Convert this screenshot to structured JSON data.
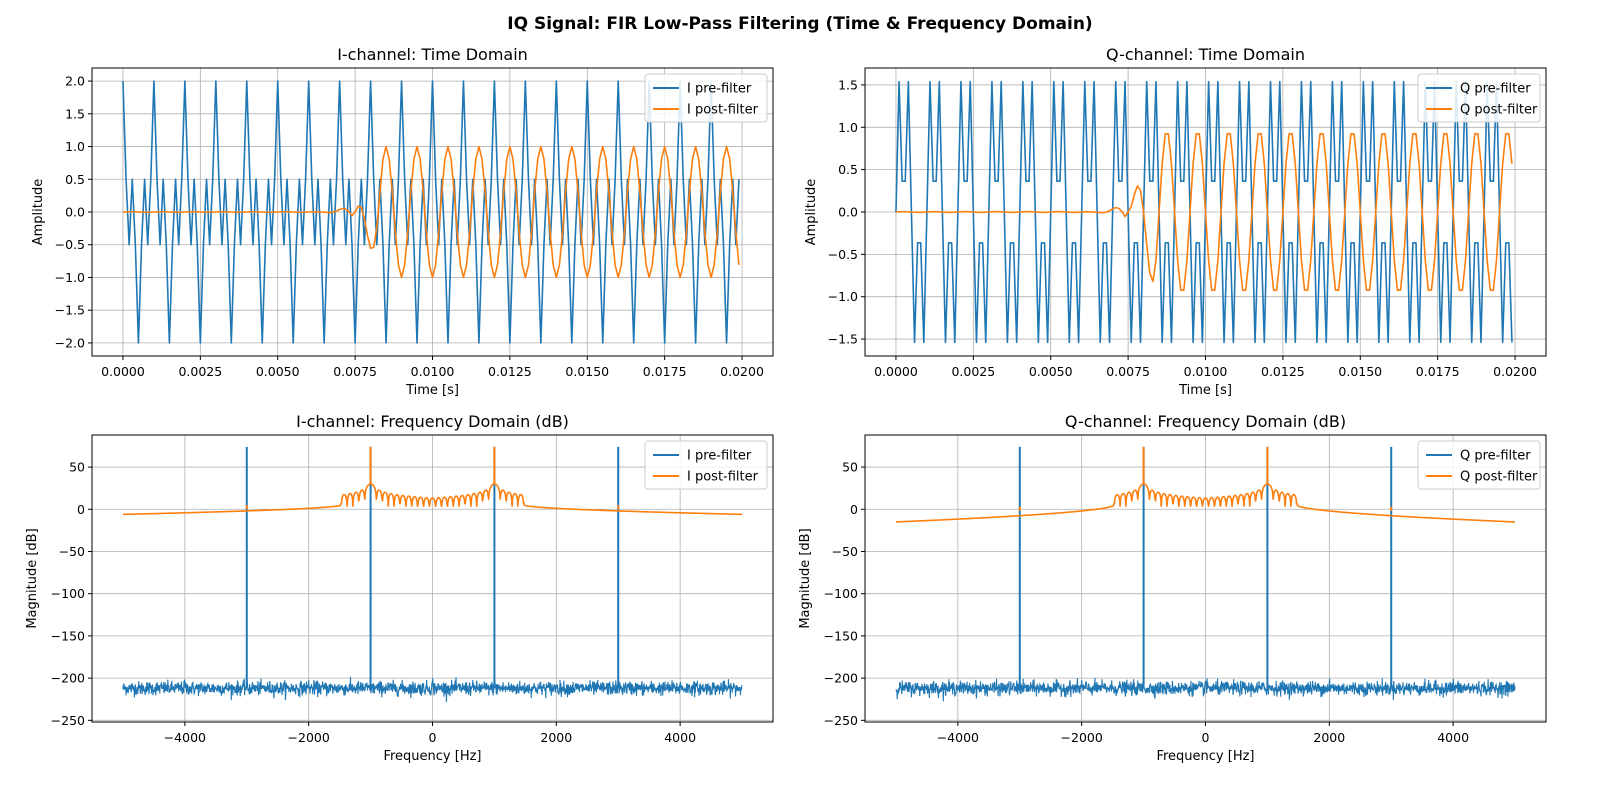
{
  "figure": {
    "suptitle": "IQ Signal: FIR Low-Pass Filtering (Time & Frequency Domain)"
  },
  "colors": {
    "pre": "#1f77b4",
    "post": "#ff7f0e",
    "grid": "#b0b0b0",
    "axis": "#000000"
  },
  "chart_data": [
    {
      "id": "i-time",
      "type": "line",
      "title": "I-channel: Time Domain",
      "xlabel": "Time [s]",
      "ylabel": "Amplitude",
      "xlim": [
        -0.001,
        0.021
      ],
      "ylim": [
        -2.2,
        2.2
      ],
      "xticks": [
        0.0,
        0.0025,
        0.005,
        0.0075,
        0.01,
        0.0125,
        0.015,
        0.0175,
        0.02
      ],
      "xtick_labels": [
        "0.0000",
        "0.0025",
        "0.0050",
        "0.0075",
        "0.0100",
        "0.0125",
        "0.0150",
        "0.0175",
        "0.0200"
      ],
      "yticks": [
        -2.0,
        -1.5,
        -1.0,
        -0.5,
        0.0,
        0.5,
        1.0,
        1.5,
        2.0
      ],
      "ytick_labels": [
        "−2.0",
        "−1.5",
        "−1.0",
        "−0.5",
        "0.0",
        "0.5",
        "1.0",
        "1.5",
        "2.0"
      ],
      "grid": true,
      "legend": {
        "position": "upper-right",
        "entries": [
          "I pre-filter",
          "I post-filter"
        ]
      },
      "sample_rate_hz": 10000,
      "duration_s": 0.02,
      "series": [
        {
          "name": "I pre-filter",
          "model": "cos(2π·1000·t) + cos(2π·3000·t)",
          "components": [
            {
              "freq_hz": 1000,
              "amp": 1.0,
              "phase": "cos"
            },
            {
              "freq_hz": 3000,
              "amp": 1.0,
              "phase": "cos"
            }
          ]
        },
        {
          "name": "I post-filter",
          "model": "filtered 1 kHz tone, delayed ~0.0075 s",
          "components": [
            {
              "freq_hz": 1000,
              "amp": 1.0,
              "phase": "cos"
            }
          ],
          "onset_s": 0.0075
        }
      ]
    },
    {
      "id": "q-time",
      "type": "line",
      "title": "Q-channel: Time Domain",
      "xlabel": "Time [s]",
      "ylabel": "Amplitude",
      "xlim": [
        -0.001,
        0.021
      ],
      "ylim": [
        -1.7,
        1.7
      ],
      "xticks": [
        0.0,
        0.0025,
        0.005,
        0.0075,
        0.01,
        0.0125,
        0.015,
        0.0175,
        0.02
      ],
      "xtick_labels": [
        "0.0000",
        "0.0025",
        "0.0050",
        "0.0075",
        "0.0100",
        "0.0125",
        "0.0150",
        "0.0175",
        "0.0200"
      ],
      "yticks": [
        -1.5,
        -1.0,
        -0.5,
        0.0,
        0.5,
        1.0,
        1.5
      ],
      "ytick_labels": [
        "−1.5",
        "−1.0",
        "−0.5",
        "0.0",
        "0.5",
        "1.0",
        "1.5"
      ],
      "grid": true,
      "legend": {
        "position": "upper-right",
        "entries": [
          "Q pre-filter",
          "Q post-filter"
        ]
      },
      "sample_rate_hz": 10000,
      "duration_s": 0.02,
      "series": [
        {
          "name": "Q pre-filter",
          "model": "sin(2π·1000·t) + sin(2π·3000·t)",
          "components": [
            {
              "freq_hz": 1000,
              "amp": 1.0,
              "phase": "sin"
            },
            {
              "freq_hz": 3000,
              "amp": 1.0,
              "phase": "sin"
            }
          ]
        },
        {
          "name": "Q post-filter",
          "model": "filtered 1 kHz tone, delayed ~0.0075 s",
          "components": [
            {
              "freq_hz": 1000,
              "amp": 0.97,
              "phase": "sin"
            }
          ],
          "onset_s": 0.0075
        }
      ]
    },
    {
      "id": "i-freq",
      "type": "line",
      "title": "I-channel: Frequency Domain (dB)",
      "xlabel": "Frequency [Hz]",
      "ylabel": "Magnitude [dB]",
      "xlim": [
        -5500,
        5500
      ],
      "ylim": [
        -252,
        88
      ],
      "xticks": [
        -4000,
        -2000,
        0,
        2000,
        4000
      ],
      "xtick_labels": [
        "−4000",
        "−2000",
        "0",
        "2000",
        "4000"
      ],
      "yticks": [
        -250,
        -200,
        -150,
        -100,
        -50,
        0,
        50
      ],
      "ytick_labels": [
        "−250",
        "−200",
        "−150",
        "−100",
        "−50",
        "0",
        "50"
      ],
      "grid": true,
      "legend": {
        "position": "upper-right",
        "entries": [
          "I pre-filter",
          "I post-filter"
        ]
      },
      "series": [
        {
          "name": "I pre-filter",
          "noise_floor_db": -212,
          "noise_spread_db": 9,
          "peaks": [
            {
              "freq_hz": -3000,
              "db": 74
            },
            {
              "freq_hz": -1000,
              "db": 74
            },
            {
              "freq_hz": 1000,
              "db": 74
            },
            {
              "freq_hz": 3000,
              "db": 74
            }
          ]
        },
        {
          "name": "I post-filter",
          "peaks": [
            {
              "freq_hz": -1000,
              "db": 74
            },
            {
              "freq_hz": 1000,
              "db": 74
            },
            {
              "freq_hz": -3000,
              "db": 5
            },
            {
              "freq_hz": 3000,
              "db": 5
            }
          ],
          "edge_db": -6,
          "passband_ripple_range_hz": [
            -1500,
            1500
          ]
        }
      ]
    },
    {
      "id": "q-freq",
      "type": "line",
      "title": "Q-channel: Frequency Domain (dB)",
      "xlabel": "Frequency [Hz]",
      "ylabel": "Magnitude [dB]",
      "xlim": [
        -5500,
        5500
      ],
      "ylim": [
        -252,
        88
      ],
      "xticks": [
        -4000,
        -2000,
        0,
        2000,
        4000
      ],
      "xtick_labels": [
        "−4000",
        "−2000",
        "0",
        "2000",
        "4000"
      ],
      "yticks": [
        -250,
        -200,
        -150,
        -100,
        -50,
        0,
        50
      ],
      "ytick_labels": [
        "−250",
        "−200",
        "−150",
        "−100",
        "−50",
        "0",
        "50"
      ],
      "grid": true,
      "legend": {
        "position": "upper-right",
        "entries": [
          "Q pre-filter",
          "Q post-filter"
        ]
      },
      "series": [
        {
          "name": "Q pre-filter",
          "noise_floor_db": -212,
          "noise_spread_db": 9,
          "peaks": [
            {
              "freq_hz": -3000,
              "db": 74
            },
            {
              "freq_hz": -1000,
              "db": 74
            },
            {
              "freq_hz": 1000,
              "db": 74
            },
            {
              "freq_hz": 3000,
              "db": 74
            }
          ]
        },
        {
          "name": "Q post-filter",
          "peaks": [
            {
              "freq_hz": -1000,
              "db": 74
            },
            {
              "freq_hz": 1000,
              "db": 74
            },
            {
              "freq_hz": -3000,
              "db": 3
            },
            {
              "freq_hz": 3000,
              "db": 3
            }
          ],
          "edge_db": -15,
          "passband_ripple_range_hz": [
            -1500,
            1500
          ]
        }
      ]
    }
  ]
}
